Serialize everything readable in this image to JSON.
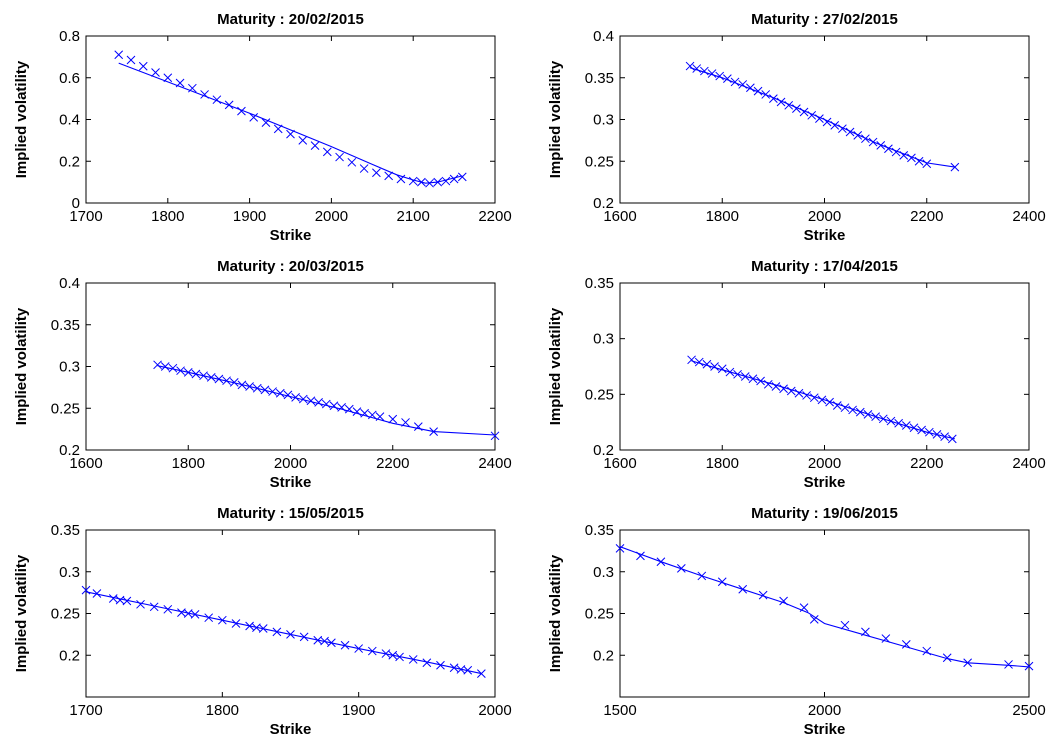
{
  "figure": {
    "colors": {
      "series": "#0000ff",
      "axes": "#000000",
      "background": "#ffffff"
    }
  },
  "chart_data": [
    {
      "type": "scatter",
      "title": "Maturity : 20/02/2015",
      "xlabel": "Strike",
      "ylabel": "Implied volatility",
      "xlim": [
        1700,
        2200
      ],
      "ylim": [
        0,
        0.8
      ],
      "xticks": [
        "1700",
        "1800",
        "1900",
        "2000",
        "2100",
        "2200"
      ],
      "yticks": [
        "0",
        "0.2",
        "0.4",
        "0.6",
        "0.8"
      ],
      "grid": false,
      "series": [
        {
          "style": "markers-x",
          "x": [
            1740,
            1755,
            1770,
            1785,
            1800,
            1815,
            1830,
            1845,
            1860,
            1875,
            1890,
            1905,
            1920,
            1935,
            1950,
            1965,
            1980,
            1995,
            2010,
            2025,
            2040,
            2055,
            2070,
            2085,
            2100,
            2110,
            2120,
            2130,
            2140,
            2150,
            2160
          ],
          "y": [
            0.71,
            0.685,
            0.655,
            0.625,
            0.6,
            0.575,
            0.55,
            0.52,
            0.495,
            0.47,
            0.44,
            0.41,
            0.385,
            0.355,
            0.33,
            0.3,
            0.275,
            0.245,
            0.22,
            0.195,
            0.165,
            0.145,
            0.13,
            0.115,
            0.105,
            0.1,
            0.095,
            0.1,
            0.105,
            0.115,
            0.125
          ]
        },
        {
          "style": "line",
          "x": [
            1740,
            1800,
            1900,
            2000,
            2050,
            2080,
            2100,
            2115,
            2130,
            2145,
            2160
          ],
          "y": [
            0.67,
            0.58,
            0.43,
            0.27,
            0.185,
            0.135,
            0.11,
            0.095,
            0.1,
            0.115,
            0.13
          ]
        }
      ]
    },
    {
      "type": "scatter",
      "title": "Maturity : 27/02/2015",
      "xlabel": "Strike",
      "ylabel": "Implied volatility",
      "xlim": [
        1600,
        2400
      ],
      "ylim": [
        0.2,
        0.4
      ],
      "xticks": [
        "1600",
        "1800",
        "2000",
        "2200",
        "2400"
      ],
      "yticks": [
        "0.2",
        "0.25",
        "0.3",
        "0.35",
        "0.4"
      ],
      "grid": false,
      "series": [
        {
          "style": "markers-x",
          "x": [
            1737,
            1750,
            1765,
            1780,
            1795,
            1810,
            1825,
            1840,
            1855,
            1870,
            1885,
            1900,
            1915,
            1930,
            1945,
            1960,
            1975,
            1990,
            2005,
            2020,
            2035,
            2050,
            2065,
            2080,
            2095,
            2110,
            2125,
            2140,
            2155,
            2170,
            2185,
            2200,
            2255
          ],
          "y": [
            0.364,
            0.361,
            0.358,
            0.355,
            0.352,
            0.349,
            0.345,
            0.342,
            0.338,
            0.334,
            0.33,
            0.325,
            0.321,
            0.317,
            0.313,
            0.309,
            0.305,
            0.301,
            0.297,
            0.293,
            0.289,
            0.285,
            0.281,
            0.277,
            0.273,
            0.269,
            0.265,
            0.261,
            0.257,
            0.254,
            0.25,
            0.247,
            0.243
          ]
        },
        {
          "style": "line",
          "x": [
            1737,
            1800,
            1900,
            2000,
            2100,
            2200,
            2255
          ],
          "y": [
            0.362,
            0.35,
            0.326,
            0.3,
            0.272,
            0.248,
            0.243
          ]
        }
      ]
    },
    {
      "type": "scatter",
      "title": "Maturity : 20/03/2015",
      "xlabel": "Strike",
      "ylabel": "Implied volatility",
      "xlim": [
        1600,
        2400
      ],
      "ylim": [
        0.2,
        0.4
      ],
      "xticks": [
        "1600",
        "1800",
        "2000",
        "2200",
        "2400"
      ],
      "yticks": [
        "0.2",
        "0.25",
        "0.3",
        "0.35",
        "0.4"
      ],
      "grid": false,
      "series": [
        {
          "style": "markers-x",
          "x": [
            1740,
            1755,
            1770,
            1785,
            1800,
            1815,
            1830,
            1845,
            1860,
            1875,
            1890,
            1905,
            1920,
            1935,
            1950,
            1965,
            1980,
            1995,
            2010,
            2025,
            2040,
            2055,
            2070,
            2085,
            2100,
            2115,
            2130,
            2145,
            2160,
            2175,
            2200,
            2225,
            2250,
            2280,
            2400
          ],
          "y": [
            0.302,
            0.3,
            0.298,
            0.295,
            0.293,
            0.291,
            0.289,
            0.287,
            0.285,
            0.283,
            0.281,
            0.278,
            0.276,
            0.274,
            0.272,
            0.27,
            0.268,
            0.266,
            0.263,
            0.261,
            0.259,
            0.257,
            0.255,
            0.253,
            0.251,
            0.249,
            0.246,
            0.244,
            0.242,
            0.24,
            0.237,
            0.233,
            0.228,
            0.222,
            0.217
          ]
        },
        {
          "style": "line",
          "x": [
            1740,
            1800,
            1900,
            2000,
            2100,
            2200,
            2280,
            2400
          ],
          "y": [
            0.301,
            0.293,
            0.279,
            0.264,
            0.249,
            0.232,
            0.222,
            0.218
          ]
        }
      ]
    },
    {
      "type": "scatter",
      "title": "Maturity : 17/04/2015",
      "xlabel": "Strike",
      "ylabel": "Implied volatility",
      "xlim": [
        1600,
        2400
      ],
      "ylim": [
        0.2,
        0.35
      ],
      "xticks": [
        "1600",
        "1800",
        "2000",
        "2200",
        "2400"
      ],
      "yticks": [
        "0.2",
        "0.25",
        "0.3",
        "0.35"
      ],
      "grid": false,
      "series": [
        {
          "style": "markers-x",
          "x": [
            1740,
            1755,
            1770,
            1785,
            1800,
            1815,
            1830,
            1845,
            1860,
            1875,
            1890,
            1905,
            1920,
            1935,
            1950,
            1965,
            1980,
            1995,
            2010,
            2025,
            2040,
            2055,
            2070,
            2085,
            2100,
            2115,
            2130,
            2145,
            2160,
            2175,
            2190,
            2205,
            2220,
            2235,
            2250
          ],
          "y": [
            0.281,
            0.279,
            0.277,
            0.275,
            0.273,
            0.27,
            0.268,
            0.266,
            0.264,
            0.262,
            0.259,
            0.257,
            0.255,
            0.253,
            0.251,
            0.249,
            0.247,
            0.245,
            0.243,
            0.24,
            0.238,
            0.236,
            0.234,
            0.232,
            0.23,
            0.228,
            0.226,
            0.224,
            0.222,
            0.22,
            0.218,
            0.216,
            0.214,
            0.212,
            0.21
          ]
        },
        {
          "style": "line",
          "x": [
            1740,
            1800,
            1900,
            2000,
            2100,
            2200,
            2255
          ],
          "y": [
            0.28,
            0.272,
            0.259,
            0.245,
            0.23,
            0.216,
            0.21
          ]
        }
      ]
    },
    {
      "type": "scatter",
      "title": "Maturity : 15/05/2015",
      "xlabel": "Strike",
      "ylabel": "Implied volatility",
      "xlim": [
        1700,
        2000
      ],
      "ylim": [
        0.15,
        0.35
      ],
      "xticks": [
        "1700",
        "1800",
        "1900",
        "2000"
      ],
      "yticks": [
        "0.2",
        "0.25",
        "0.3",
        "0.35"
      ],
      "grid": false,
      "series": [
        {
          "style": "markers-x",
          "x": [
            1700,
            1708,
            1720,
            1725,
            1730,
            1740,
            1750,
            1760,
            1770,
            1775,
            1780,
            1790,
            1800,
            1810,
            1820,
            1825,
            1830,
            1840,
            1850,
            1860,
            1870,
            1875,
            1880,
            1890,
            1900,
            1910,
            1920,
            1925,
            1930,
            1940,
            1950,
            1960,
            1970,
            1975,
            1980,
            1990
          ],
          "y": [
            0.278,
            0.274,
            0.268,
            0.266,
            0.265,
            0.261,
            0.258,
            0.255,
            0.251,
            0.25,
            0.249,
            0.245,
            0.242,
            0.238,
            0.235,
            0.233,
            0.232,
            0.228,
            0.225,
            0.222,
            0.218,
            0.217,
            0.215,
            0.212,
            0.208,
            0.205,
            0.202,
            0.2,
            0.198,
            0.195,
            0.191,
            0.188,
            0.185,
            0.183,
            0.182,
            0.178
          ]
        },
        {
          "style": "line",
          "x": [
            1700,
            1750,
            1800,
            1850,
            1900,
            1950,
            1990
          ],
          "y": [
            0.276,
            0.259,
            0.242,
            0.225,
            0.208,
            0.192,
            0.178
          ]
        }
      ]
    },
    {
      "type": "scatter",
      "title": "Maturity : 19/06/2015",
      "xlabel": "Strike",
      "ylabel": "Implied volatility",
      "xlim": [
        1500,
        2500
      ],
      "ylim": [
        0.15,
        0.35
      ],
      "xticks": [
        "1500",
        "2000",
        "2500"
      ],
      "yticks": [
        "0.2",
        "0.25",
        "0.3",
        "0.35"
      ],
      "grid": false,
      "series": [
        {
          "style": "markers-x",
          "x": [
            1500,
            1550,
            1600,
            1650,
            1700,
            1750,
            1800,
            1850,
            1900,
            1950,
            1975,
            2050,
            2100,
            2150,
            2200,
            2250,
            2300,
            2350,
            2450,
            2500
          ],
          "y": [
            0.328,
            0.319,
            0.312,
            0.304,
            0.295,
            0.288,
            0.279,
            0.272,
            0.265,
            0.257,
            0.243,
            0.236,
            0.228,
            0.22,
            0.213,
            0.205,
            0.197,
            0.191,
            0.189,
            0.187
          ]
        },
        {
          "style": "line",
          "x": [
            1500,
            1600,
            1700,
            1800,
            1900,
            1960,
            2000,
            2100,
            2200,
            2300,
            2350,
            2450,
            2500
          ],
          "y": [
            0.33,
            0.312,
            0.295,
            0.279,
            0.263,
            0.251,
            0.238,
            0.224,
            0.21,
            0.196,
            0.191,
            0.188,
            0.186
          ]
        }
      ]
    }
  ]
}
